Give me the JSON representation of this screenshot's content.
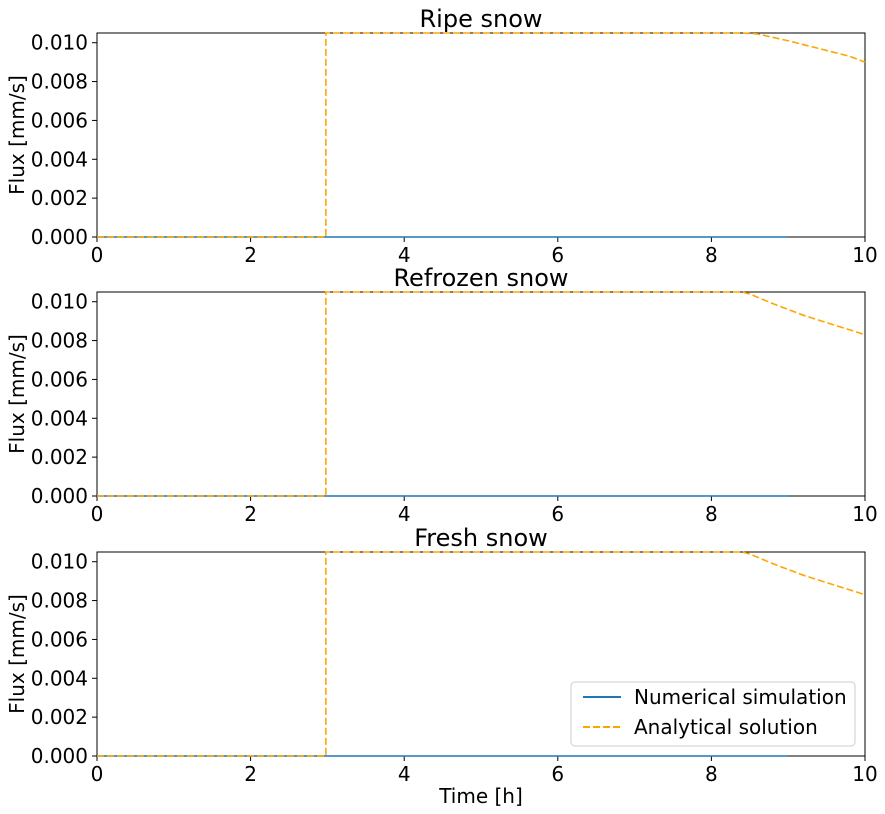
{
  "colors": {
    "numerical": "#1f77b4",
    "analytical": "#ffa500",
    "axes": "#000000",
    "legend_border": "#cccccc"
  },
  "legend": {
    "placement": "lower-right",
    "panel": 2,
    "entries": [
      {
        "label": "Numerical simulation",
        "style": "solid",
        "color_key": "numerical"
      },
      {
        "label": "Analytical solution",
        "style": "dashed",
        "color_key": "analytical"
      }
    ]
  },
  "chart_data": [
    {
      "type": "line",
      "title": "Ripe snow",
      "xlabel": "",
      "ylabel": "Flux [mm/s]",
      "xlim": [
        0,
        10
      ],
      "ylim": [
        0,
        0.0105
      ],
      "xticks": [
        "0",
        "2",
        "4",
        "6",
        "8",
        "10"
      ],
      "yticks": [
        "0.000",
        "0.002",
        "0.004",
        "0.006",
        "0.008",
        "0.010"
      ],
      "grid": false,
      "series": [
        {
          "name": "Numerical simulation",
          "style": "solid",
          "x": [
            0,
            9
          ],
          "y": [
            0,
            0
          ]
        },
        {
          "name": "Analytical solution",
          "style": "dashed",
          "x": [
            0,
            2.98,
            2.98,
            8.4,
            8.6,
            9.0,
            9.4,
            9.8,
            10.0
          ],
          "y": [
            0,
            0,
            0.0105,
            0.0105,
            0.01045,
            0.0101,
            0.0097,
            0.0093,
            0.009
          ]
        }
      ]
    },
    {
      "type": "line",
      "title": "Refrozen snow",
      "xlabel": "",
      "ylabel": "Flux [mm/s]",
      "xlim": [
        0,
        10
      ],
      "ylim": [
        0,
        0.0105
      ],
      "xticks": [
        "0",
        "2",
        "4",
        "6",
        "8",
        "10"
      ],
      "yticks": [
        "0.000",
        "0.002",
        "0.004",
        "0.006",
        "0.008",
        "0.010"
      ],
      "grid": false,
      "series": [
        {
          "name": "Numerical simulation",
          "style": "solid",
          "x": [
            0,
            9
          ],
          "y": [
            0,
            0
          ]
        },
        {
          "name": "Analytical solution",
          "style": "dashed",
          "x": [
            0,
            2.98,
            2.98,
            8.4,
            8.5,
            8.8,
            9.2,
            9.6,
            10.0
          ],
          "y": [
            0,
            0,
            0.0105,
            0.0105,
            0.0104,
            0.0099,
            0.0093,
            0.0088,
            0.0083
          ]
        }
      ]
    },
    {
      "type": "line",
      "title": "Fresh snow",
      "xlabel": "Time [h]",
      "ylabel": "Flux [mm/s]",
      "xlim": [
        0,
        10
      ],
      "ylim": [
        0,
        0.0105
      ],
      "xticks": [
        "0",
        "2",
        "4",
        "6",
        "8",
        "10"
      ],
      "yticks": [
        "0.000",
        "0.002",
        "0.004",
        "0.006",
        "0.008",
        "0.010"
      ],
      "grid": false,
      "series": [
        {
          "name": "Numerical simulation",
          "style": "solid",
          "x": [
            0,
            9
          ],
          "y": [
            0,
            0
          ]
        },
        {
          "name": "Analytical solution",
          "style": "dashed",
          "x": [
            0,
            2.98,
            2.98,
            8.4,
            8.5,
            8.8,
            9.2,
            9.6,
            10.0
          ],
          "y": [
            0,
            0,
            0.0105,
            0.0105,
            0.0104,
            0.0099,
            0.0093,
            0.0088,
            0.0083
          ]
        }
      ]
    }
  ]
}
